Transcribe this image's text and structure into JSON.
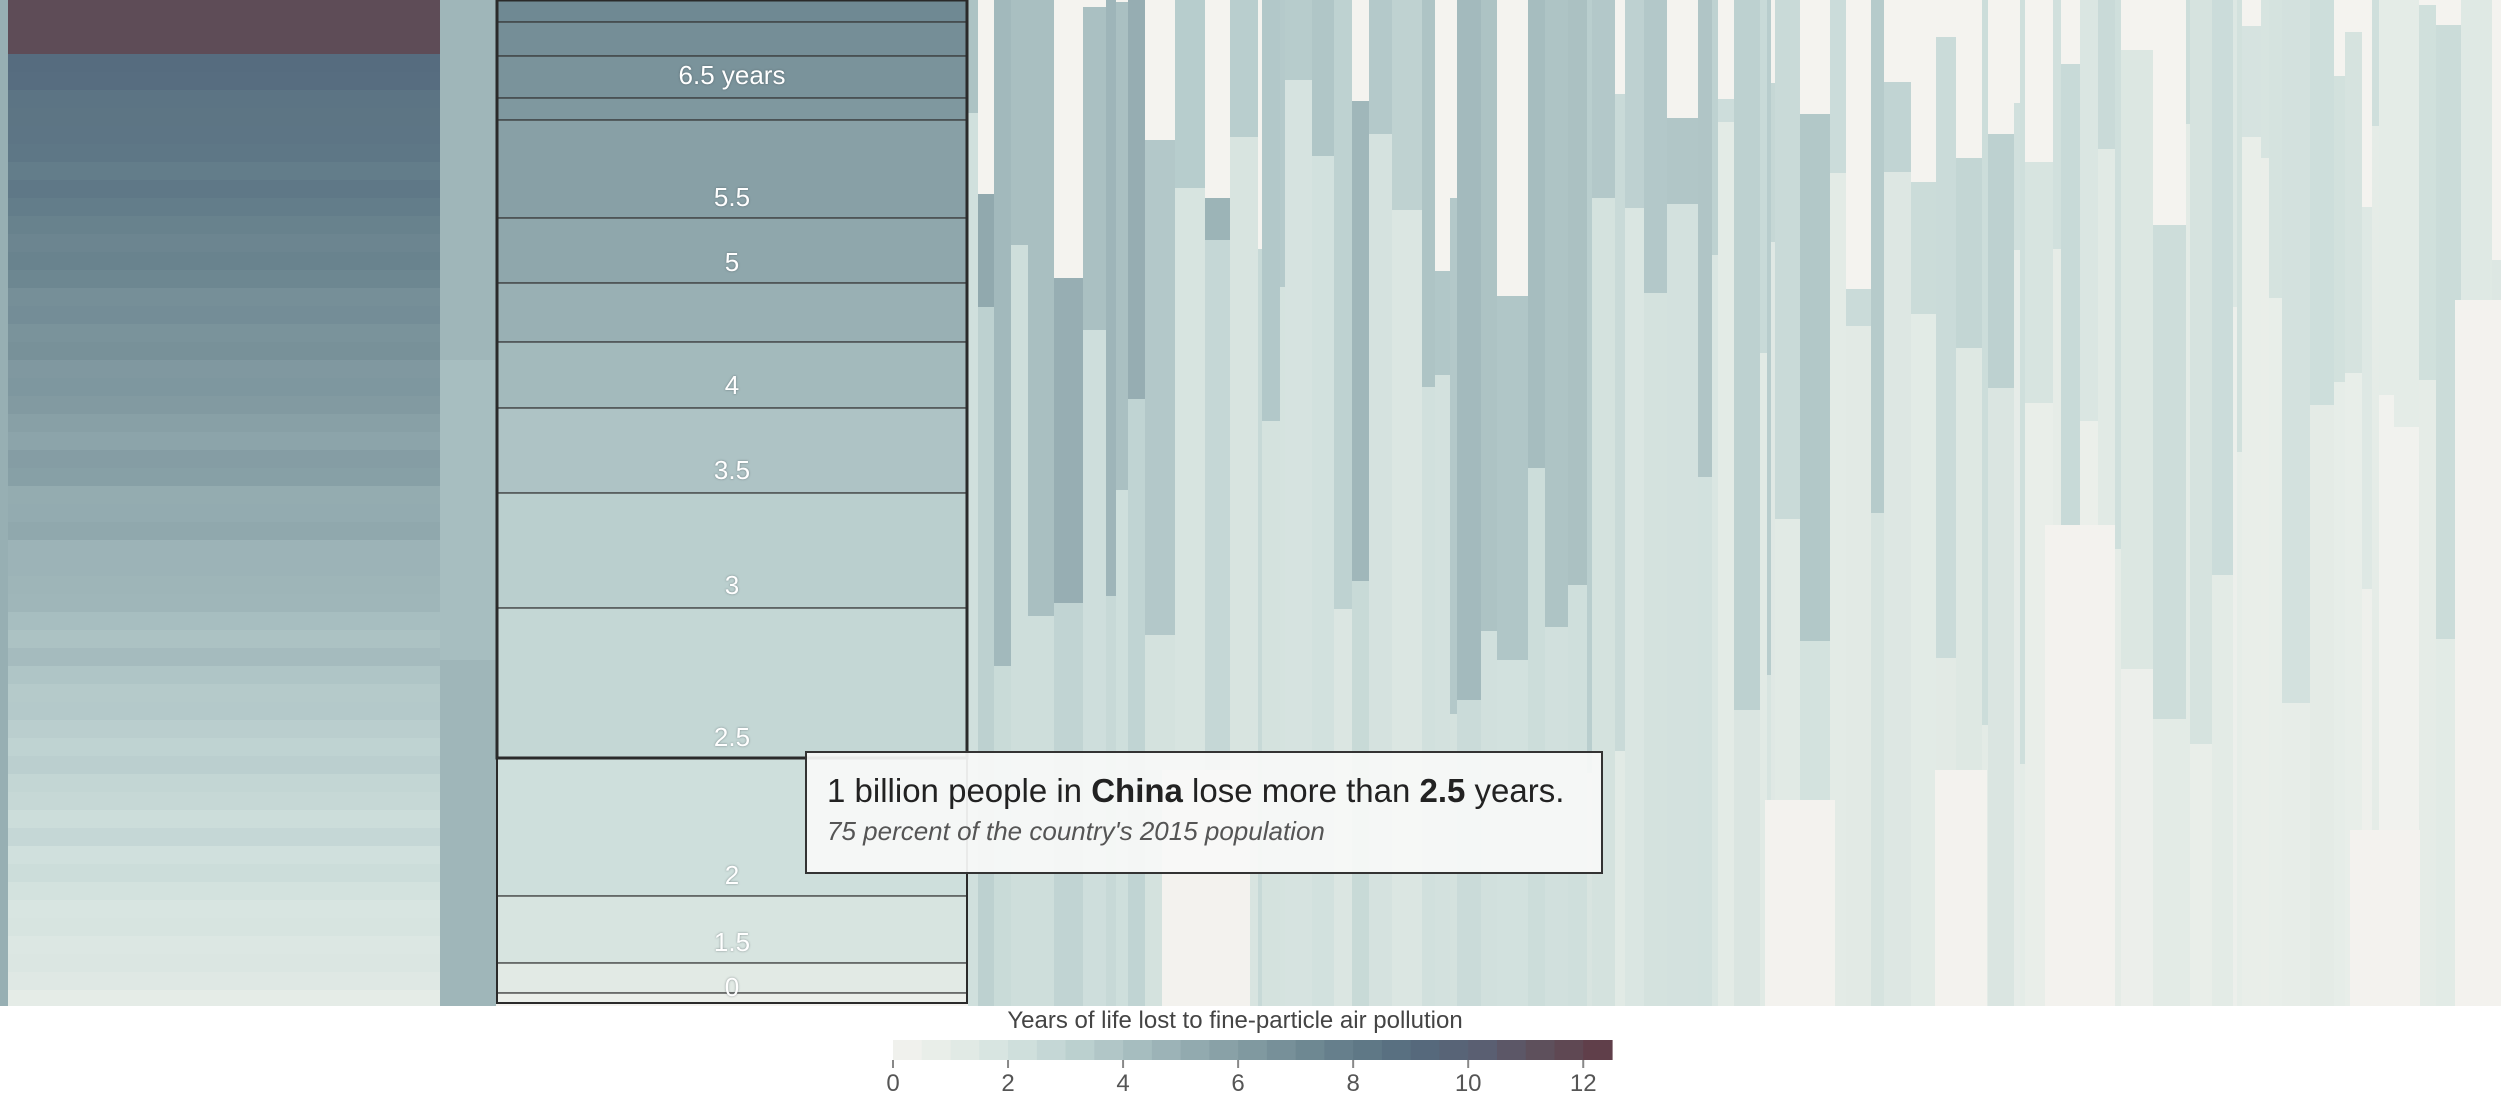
{
  "chart_data": {
    "type": "bar",
    "stacked_column": {
      "country": "China",
      "tick_labels": [
        "6.5 years",
        "5.5",
        "5",
        "4",
        "3.5",
        "3",
        "2.5",
        "2",
        "1.5",
        "0"
      ],
      "tick_values": [
        6.5,
        5.5,
        5,
        4,
        3.5,
        3,
        2.5,
        2,
        1.5,
        0
      ]
    },
    "tooltip": {
      "count": "1 billion",
      "text_1": " people in ",
      "country": "China",
      "text_2": " lose more than ",
      "years": "2.5",
      "text_3": " years.",
      "subtitle": "75 percent of the country's 2015 population"
    },
    "legend": {
      "title": "Years of life lost to fine-particle air pollution",
      "ticks": [
        "0",
        "2",
        "4",
        "6",
        "8",
        "10",
        "12"
      ],
      "tick_values": [
        0,
        2,
        4,
        6,
        8,
        10,
        12
      ],
      "range": [
        0,
        12.5
      ]
    },
    "color_scale": [
      "#f4f3ef",
      "#e3ebe6",
      "#cfdfdc",
      "#b8cdcd",
      "#a0b7ba",
      "#8aa2a8",
      "#768f98",
      "#627c89",
      "#556b7e",
      "#5a5f72",
      "#5e4e5a",
      "#603b45"
    ]
  }
}
